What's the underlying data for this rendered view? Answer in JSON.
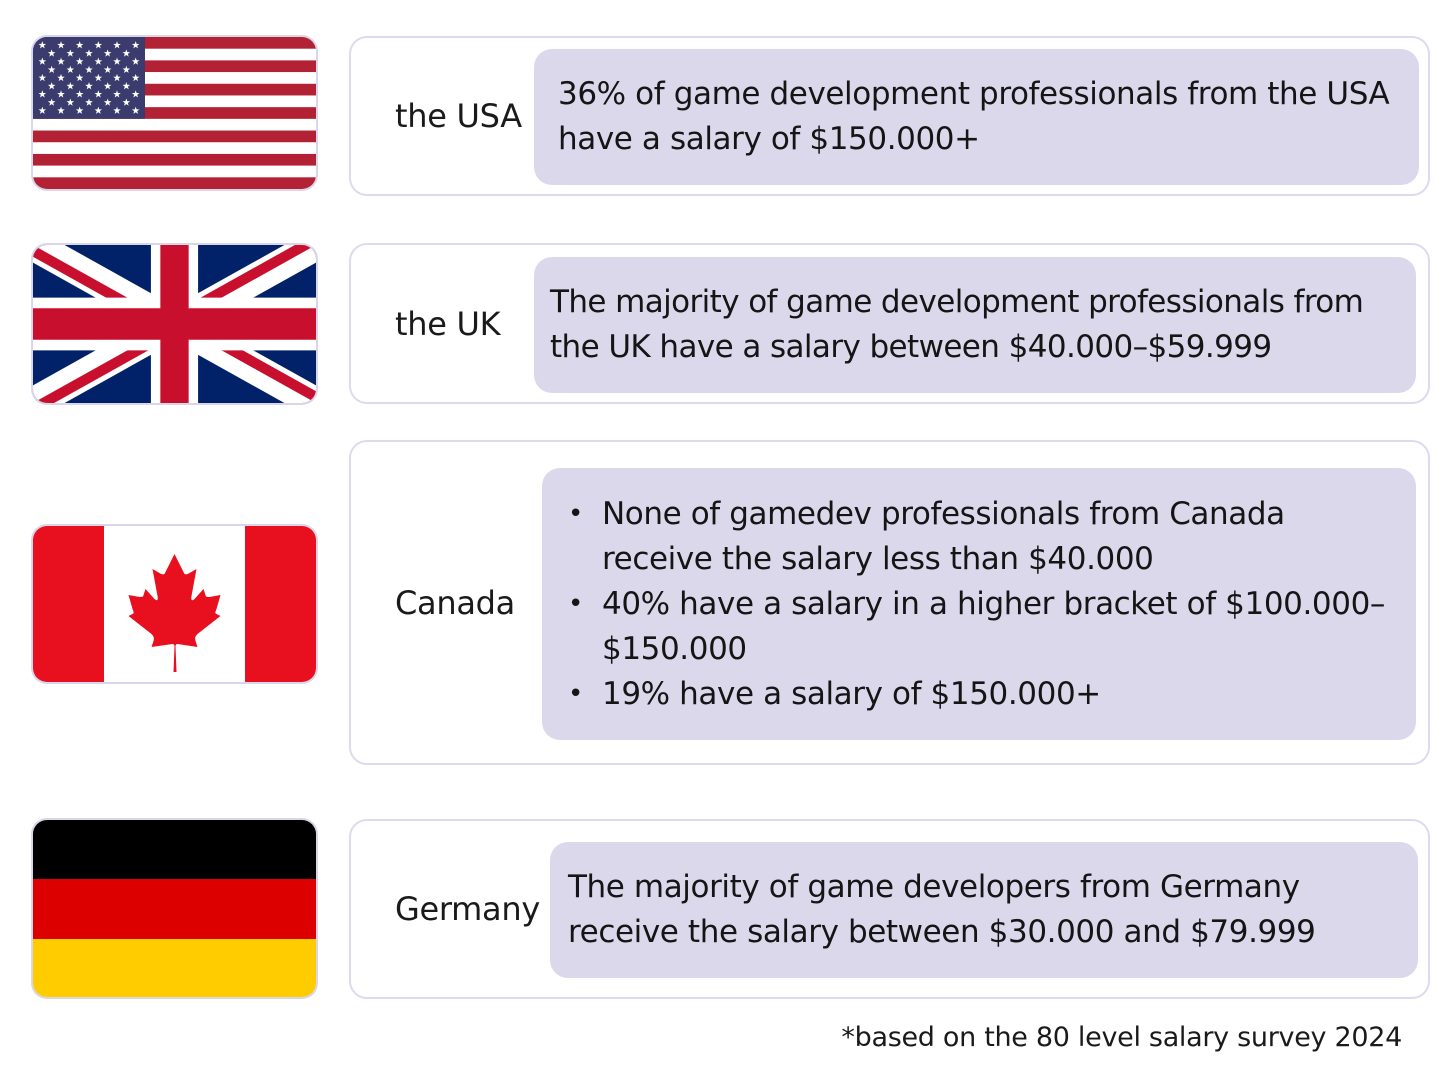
{
  "rows": [
    {
      "country": "the USA",
      "flag_icon": "usa-flag-icon",
      "text": "36% of game development professionals from the USA have a salary of $150.000+"
    },
    {
      "country": "the UK",
      "flag_icon": "uk-flag-icon",
      "text": "The majority of game development professionals from the UK have a salary between $40.000–$59.999"
    },
    {
      "country": "Canada",
      "flag_icon": "canada-flag-icon",
      "bullets": [
        "None of gamedev professionals from Canada receive the salary less than $40.000",
        "40% have a salary in a higher bracket of $100.000–$150.000",
        "19% have a salary of $150.000+"
      ]
    },
    {
      "country": "Germany",
      "flag_icon": "germany-flag-icon",
      "text": "The majority of game developers from Germany receive the salary between $30.000 and $79.999"
    }
  ],
  "footnote": "*based on the 80 level salary survey 2024",
  "colors": {
    "card_border": "#dcdaee",
    "box_fill": "#dcd8ec",
    "usa_red": "#b22234",
    "usa_blue": "#3c3b6e",
    "uk_blue": "#012169",
    "uk_red": "#c8102e",
    "canada_red": "#e8101e",
    "germany_black": "#000000",
    "germany_red": "#dd0000",
    "germany_gold": "#ffcc00"
  }
}
